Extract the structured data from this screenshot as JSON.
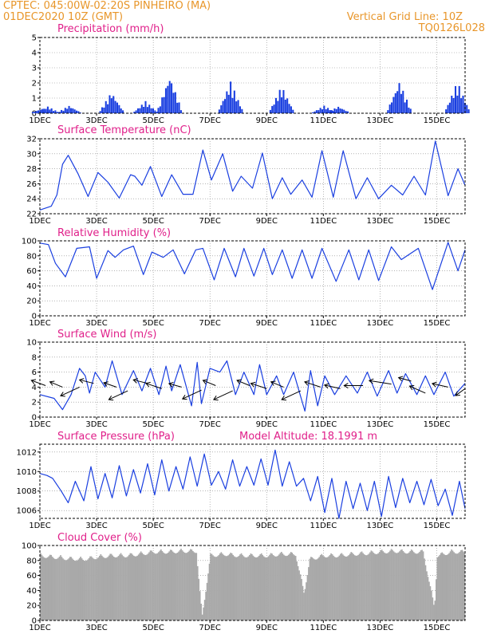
{
  "header": {
    "line1": "CPTEC:   045:00W-02:20S   PINHEIRO (MA)",
    "line2": "01DEC2020 10Z (GMT)",
    "vertical_grid_label": "Vertical Grid Line: 10Z",
    "code": "TQ0126L028"
  },
  "colors": {
    "header": "#e8962a",
    "title": "#e0208a",
    "series": "#1a3fe0",
    "cloud": "#a9a9a9"
  },
  "x_ticks": [
    "1DEC",
    "3DEC",
    "5DEC",
    "7DEC",
    "9DEC",
    "11DEC",
    "13DEC",
    "15DEC"
  ],
  "model_altitude": "Model Altitude: 18.1991 m",
  "chart_data": [
    {
      "name": "precipitation",
      "type": "bar",
      "title": "Precipitation (mm/h)",
      "x_range_days": [
        1,
        16
      ],
      "ylim": [
        0,
        5
      ],
      "yticks": [
        0,
        1,
        2,
        3,
        4,
        5
      ],
      "events": [
        {
          "day": 1.05,
          "peak": 0.3
        },
        {
          "day": 1.25,
          "peak": 0.45
        },
        {
          "day": 2.0,
          "peak": 0.5
        },
        {
          "day": 3.5,
          "peak": 1.4
        },
        {
          "day": 4.7,
          "peak": 0.8
        },
        {
          "day": 5.55,
          "peak": 2.5
        },
        {
          "day": 7.7,
          "peak": 2.1
        },
        {
          "day": 9.5,
          "peak": 1.8
        },
        {
          "day": 11.0,
          "peak": 0.5
        },
        {
          "day": 11.5,
          "peak": 0.45
        },
        {
          "day": 13.65,
          "peak": 2.1
        },
        {
          "day": 15.7,
          "peak": 2.1
        }
      ]
    },
    {
      "name": "surface-temperature",
      "type": "line",
      "title": "Surface Temperature (nC)",
      "x_range_days": [
        1,
        16
      ],
      "ylim": [
        22,
        32
      ],
      "yticks": [
        22,
        24,
        26,
        28,
        30,
        32
      ],
      "x": [
        1.0,
        1.4,
        1.6,
        1.8,
        2.0,
        2.35,
        2.7,
        3.05,
        3.4,
        3.8,
        4.2,
        4.35,
        4.6,
        4.9,
        5.3,
        5.65,
        6.05,
        6.4,
        6.75,
        7.05,
        7.45,
        7.8,
        8.1,
        8.5,
        8.85,
        9.2,
        9.55,
        9.85,
        10.25,
        10.6,
        10.95,
        11.35,
        11.7,
        12.15,
        12.55,
        12.95,
        13.4,
        13.8,
        14.2,
        14.6,
        14.95,
        15.4,
        15.75,
        16.0
      ],
      "y": [
        22.5,
        23.0,
        24.5,
        28.6,
        29.8,
        27.3,
        24.3,
        27.5,
        26.2,
        24.1,
        27.2,
        27.0,
        25.8,
        28.3,
        24.3,
        27.2,
        24.6,
        24.6,
        30.5,
        26.5,
        30.0,
        25.0,
        27.0,
        25.4,
        30.1,
        24.0,
        26.8,
        24.6,
        26.5,
        24.2,
        30.4,
        24.2,
        30.4,
        24.0,
        26.8,
        24.0,
        25.8,
        24.5,
        27.0,
        24.5,
        31.7,
        24.4,
        28.0,
        25.8
      ]
    },
    {
      "name": "relative-humidity",
      "type": "line",
      "title": "Relative Humidity (%)",
      "x_range_days": [
        1,
        16
      ],
      "ylim": [
        0,
        100
      ],
      "yticks": [
        0,
        20,
        40,
        60,
        80,
        100
      ],
      "x": [
        1.0,
        1.3,
        1.55,
        1.9,
        2.3,
        2.75,
        3.0,
        3.4,
        3.65,
        3.95,
        4.3,
        4.65,
        4.95,
        5.35,
        5.7,
        6.1,
        6.5,
        6.75,
        7.15,
        7.5,
        7.9,
        8.2,
        8.55,
        8.9,
        9.2,
        9.55,
        9.9,
        10.25,
        10.6,
        10.95,
        11.45,
        11.9,
        12.25,
        12.6,
        12.95,
        13.4,
        13.75,
        14.35,
        14.85,
        15.4,
        15.75,
        16.0
      ],
      "y": [
        97,
        95,
        70,
        52,
        90,
        92,
        50,
        87,
        78,
        88,
        93,
        55,
        85,
        78,
        88,
        56,
        88,
        90,
        48,
        90,
        52,
        90,
        53,
        90,
        55,
        88,
        50,
        88,
        50,
        90,
        46,
        88,
        48,
        88,
        47,
        92,
        75,
        90,
        35,
        98,
        60,
        88
      ]
    },
    {
      "name": "surface-wind",
      "type": "line",
      "title": "Surface Wind (m/s)",
      "x_range_days": [
        1,
        16
      ],
      "ylim": [
        0,
        10
      ],
      "yticks": [
        0,
        2,
        4,
        6,
        8,
        10
      ],
      "x": [
        1.0,
        1.5,
        1.8,
        2.1,
        2.4,
        2.6,
        2.75,
        2.95,
        3.3,
        3.55,
        3.9,
        4.3,
        4.6,
        4.9,
        5.2,
        5.45,
        5.65,
        5.95,
        6.35,
        6.55,
        6.7,
        7.0,
        7.35,
        7.6,
        7.9,
        8.2,
        8.55,
        8.75,
        9.0,
        9.35,
        9.6,
        9.95,
        10.35,
        10.55,
        10.8,
        11.05,
        11.4,
        11.8,
        12.2,
        12.55,
        12.9,
        13.3,
        13.6,
        13.9,
        14.3,
        14.6,
        14.9,
        15.3,
        15.6,
        16.0
      ],
      "y": [
        3.0,
        2.5,
        1.0,
        3.0,
        6.5,
        5.5,
        3.2,
        6.0,
        4.0,
        7.5,
        3.0,
        6.2,
        3.5,
        6.5,
        3.0,
        6.8,
        3.5,
        7.0,
        1.5,
        7.3,
        1.8,
        6.5,
        6.0,
        7.5,
        3.0,
        6.0,
        3.0,
        7.0,
        3.0,
        5.5,
        3.0,
        6.0,
        0.8,
        6.2,
        1.5,
        5.5,
        3.0,
        5.5,
        3.2,
        6.0,
        2.8,
        6.2,
        3.2,
        5.8,
        3.0,
        5.5,
        3.0,
        6.0,
        2.8,
        4.5
      ],
      "vectors": [
        {
          "day": 1.2,
          "value": 4.2,
          "dx": -0.45,
          "dy": 0.3
        },
        {
          "day": 1.8,
          "value": 4.0,
          "dx": -0.4,
          "dy": 0.3
        },
        {
          "day": 2.4,
          "value": 4.0,
          "dx": -0.6,
          "dy": -0.5
        },
        {
          "day": 2.9,
          "value": 4.5,
          "dx": -0.45,
          "dy": 0.2
        },
        {
          "day": 3.7,
          "value": 4.0,
          "dx": -0.4,
          "dy": 0.25
        },
        {
          "day": 4.1,
          "value": 3.5,
          "dx": -0.6,
          "dy": -0.5
        },
        {
          "day": 4.8,
          "value": 4.5,
          "dx": -0.45,
          "dy": 0.2
        },
        {
          "day": 5.3,
          "value": 3.8,
          "dx": -0.5,
          "dy": 0.3
        },
        {
          "day": 6.0,
          "value": 4.0,
          "dx": -0.4,
          "dy": 0.2
        },
        {
          "day": 6.7,
          "value": 3.6,
          "dx": -0.6,
          "dy": -0.5
        },
        {
          "day": 7.2,
          "value": 4.2,
          "dx": -0.4,
          "dy": 0.3
        },
        {
          "day": 7.8,
          "value": 3.5,
          "dx": -0.6,
          "dy": -0.5
        },
        {
          "day": 8.4,
          "value": 4.2,
          "dx": -0.4,
          "dy": 0.3
        },
        {
          "day": 9.0,
          "value": 3.8,
          "dx": -0.5,
          "dy": 0.3
        },
        {
          "day": 9.6,
          "value": 4.0,
          "dx": -0.4,
          "dy": 0.3
        },
        {
          "day": 10.2,
          "value": 3.5,
          "dx": -0.6,
          "dy": -0.5
        },
        {
          "day": 10.9,
          "value": 4.0,
          "dx": -0.5,
          "dy": 0.3
        },
        {
          "day": 11.6,
          "value": 3.8,
          "dx": -0.5,
          "dy": 0.2
        },
        {
          "day": 12.4,
          "value": 4.2,
          "dx": -0.6,
          "dy": 0.0
        },
        {
          "day": 13.4,
          "value": 4.4,
          "dx": -0.7,
          "dy": 0.2
        },
        {
          "day": 14.1,
          "value": 4.8,
          "dx": -0.4,
          "dy": 0.2
        },
        {
          "day": 14.6,
          "value": 3.2,
          "dx": -0.5,
          "dy": 0.4
        },
        {
          "day": 15.4,
          "value": 4.0,
          "dx": -0.5,
          "dy": 0.2
        },
        {
          "day": 16.0,
          "value": 3.8,
          "dx": -0.3,
          "dy": -0.4
        }
      ]
    },
    {
      "name": "surface-pressure",
      "type": "line",
      "title": "Surface Pressure (hPa)",
      "x_range_days": [
        1,
        16
      ],
      "ylim": [
        1005.2,
        1012.8
      ],
      "yticks": [
        1006,
        1008,
        1010,
        1012
      ],
      "x": [
        1.0,
        1.25,
        1.45,
        1.75,
        2.0,
        2.25,
        2.55,
        2.8,
        3.05,
        3.3,
        3.55,
        3.8,
        4.05,
        4.3,
        4.55,
        4.8,
        5.05,
        5.3,
        5.55,
        5.8,
        6.05,
        6.3,
        6.55,
        6.8,
        7.05,
        7.3,
        7.55,
        7.8,
        8.05,
        8.3,
        8.55,
        8.8,
        9.05,
        9.3,
        9.55,
        9.8,
        10.05,
        10.3,
        10.55,
        10.8,
        11.05,
        11.3,
        11.55,
        11.8,
        12.05,
        12.3,
        12.55,
        12.8,
        13.05,
        13.3,
        13.55,
        13.8,
        14.05,
        14.3,
        14.55,
        14.8,
        15.05,
        15.3,
        15.55,
        15.8,
        16.0
      ],
      "y": [
        1009.8,
        1009.6,
        1009.3,
        1008.0,
        1006.8,
        1009.0,
        1007.0,
        1010.5,
        1007.2,
        1009.8,
        1007.3,
        1010.6,
        1007.5,
        1010.2,
        1007.8,
        1010.8,
        1007.6,
        1011.2,
        1008.0,
        1010.5,
        1008.2,
        1011.5,
        1008.5,
        1011.8,
        1008.6,
        1010.0,
        1008.2,
        1011.2,
        1008.5,
        1010.5,
        1008.6,
        1011.3,
        1008.6,
        1012.2,
        1008.5,
        1011.0,
        1008.5,
        1009.3,
        1007.0,
        1009.5,
        1005.8,
        1009.3,
        1005.2,
        1009.0,
        1006.2,
        1008.8,
        1006.0,
        1009.0,
        1005.4,
        1009.5,
        1006.3,
        1009.3,
        1006.8,
        1009.0,
        1006.6,
        1009.2,
        1006.5,
        1008.2,
        1005.5,
        1009.0,
        1006.2
      ]
    },
    {
      "name": "cloud-cover",
      "type": "bar",
      "title": "Cloud Cover (%)",
      "x_range_days": [
        1,
        16
      ],
      "ylim": [
        0,
        100
      ],
      "yticks": [
        0,
        20,
        40,
        60,
        80,
        100
      ],
      "x": [
        1.0,
        1.5,
        2.0,
        2.5,
        3.0,
        3.5,
        4.0,
        4.5,
        5.0,
        5.5,
        6.0,
        6.5,
        6.7,
        7.0,
        7.5,
        8.0,
        8.5,
        9.0,
        9.5,
        10.0,
        10.3,
        10.5,
        11.0,
        11.5,
        12.0,
        12.5,
        13.0,
        13.5,
        14.0,
        14.5,
        14.9,
        15.0,
        15.5,
        16.0
      ],
      "y": [
        90,
        88,
        86,
        85,
        88,
        90,
        90,
        92,
        95,
        95,
        96,
        96,
        8,
        90,
        92,
        90,
        90,
        90,
        92,
        92,
        40,
        85,
        90,
        90,
        92,
        93,
        95,
        96,
        95,
        95,
        20,
        90,
        95,
        95
      ]
    }
  ]
}
